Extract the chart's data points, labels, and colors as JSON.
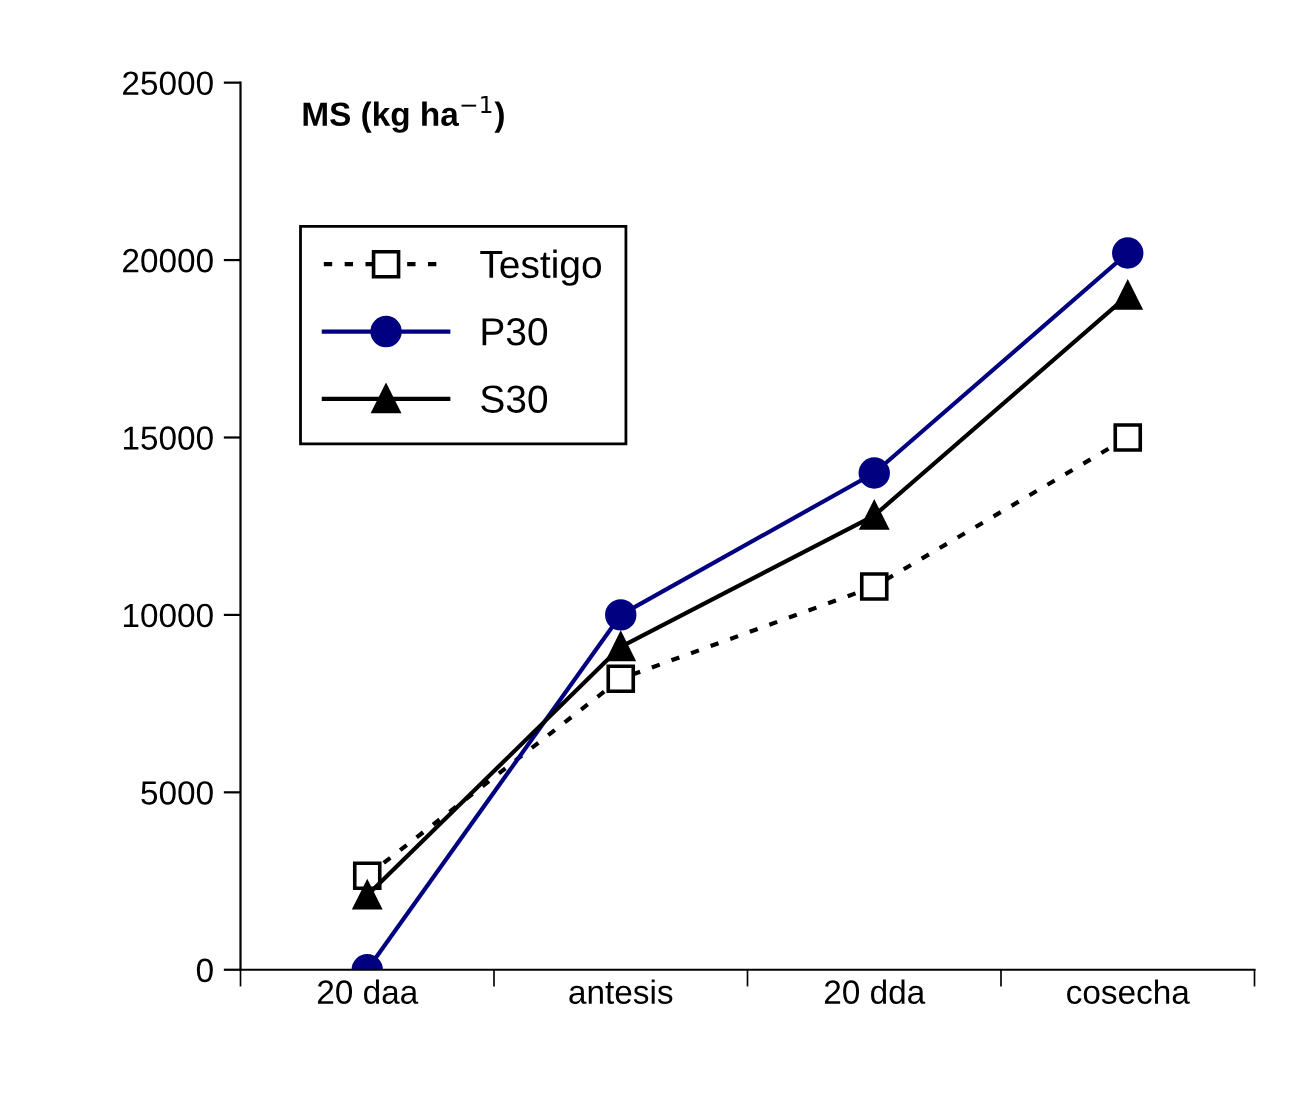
{
  "chart_data": {
    "type": "line",
    "title": "MS (kg ha$^{−1}$)",
    "categories": [
      "20 daa",
      "antesis",
      "20 dda",
      "cosecha"
    ],
    "series": [
      {
        "name": "Testigo",
        "color": "#000000",
        "values": [
          2650,
          8200,
          10800,
          15000
        ],
        "marker": "square",
        "line_style": "dotted"
      },
      {
        "name": "P30",
        "color": "#000080",
        "values": [
          0,
          10000,
          14000,
          20200
        ],
        "marker": "circle",
        "line_style": "solid"
      },
      {
        "name": "S30",
        "color": "#000000",
        "values": [
          2100,
          9100,
          12800,
          19000
        ],
        "marker": "triangle",
        "line_style": "solid"
      }
    ],
    "ylim": [
      0,
      25000
    ],
    "yticks": [
      0,
      5000,
      10000,
      15000,
      20000,
      25000
    ],
    "grid": false,
    "legend": "top left"
  }
}
